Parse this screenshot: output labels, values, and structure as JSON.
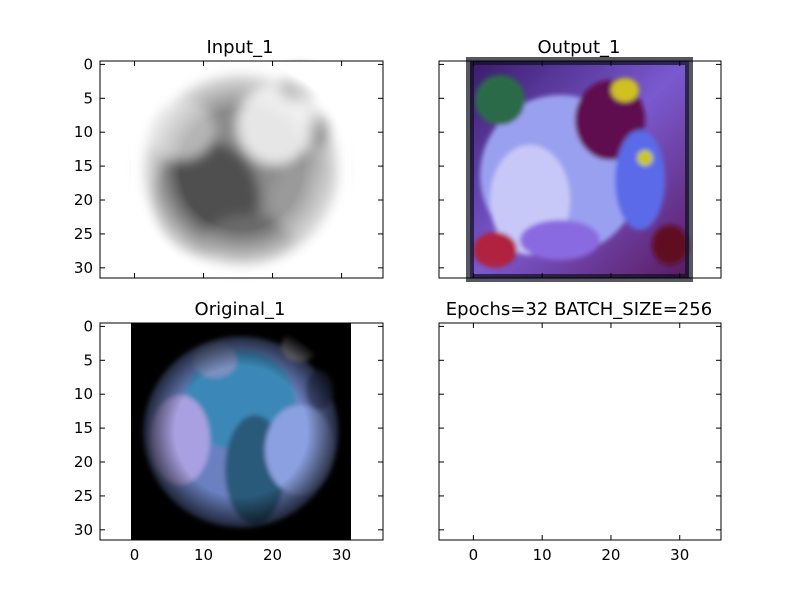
{
  "figure": {
    "background": "#ffffff",
    "frame_color": "#000000"
  },
  "chart_data": [
    {
      "type": "image",
      "title": "Input_1",
      "colormap": "gray",
      "xlim": [
        -5,
        36
      ],
      "ylim": [
        31.5,
        -0.5
      ],
      "xticks": [
        0,
        10,
        20,
        30
      ],
      "xtick_labels_visible": false,
      "yticks": [
        0,
        5,
        10,
        15,
        20,
        25,
        30
      ],
      "ytick_labels_visible": true,
      "image_extent": [
        -0.5,
        31.5,
        31.5,
        -0.5
      ]
    },
    {
      "type": "image",
      "title": "Output_1",
      "colormap": "rgb",
      "xlim": [
        -5,
        36
      ],
      "ylim": [
        31.5,
        -0.5
      ],
      "xticks": [
        0,
        10,
        20,
        30
      ],
      "xtick_labels_visible": false,
      "yticks": [
        0,
        5,
        10,
        15,
        20,
        25,
        30
      ],
      "ytick_labels_visible": false,
      "image_extent": [
        -0.5,
        31.5,
        31.5,
        -0.5
      ]
    },
    {
      "type": "image",
      "title": "Original_1",
      "colormap": "rgb",
      "xlim": [
        -5,
        36
      ],
      "ylim": [
        31.5,
        -0.5
      ],
      "xticks": [
        0,
        10,
        20,
        30
      ],
      "xtick_labels_visible": true,
      "yticks": [
        0,
        5,
        10,
        15,
        20,
        25,
        30
      ],
      "ytick_labels_visible": true,
      "image_extent": [
        -0.5,
        31.5,
        31.5,
        -0.5
      ]
    },
    {
      "type": "empty",
      "title": "Epochs=32 BATCH_SIZE=256",
      "xlim": [
        -5,
        36
      ],
      "ylim": [
        31.5,
        -0.5
      ],
      "xticks": [
        0,
        10,
        20,
        30
      ],
      "xtick_labels_visible": true,
      "yticks": [
        0,
        5,
        10,
        15,
        20,
        25,
        30
      ],
      "ytick_labels_visible": false
    }
  ]
}
